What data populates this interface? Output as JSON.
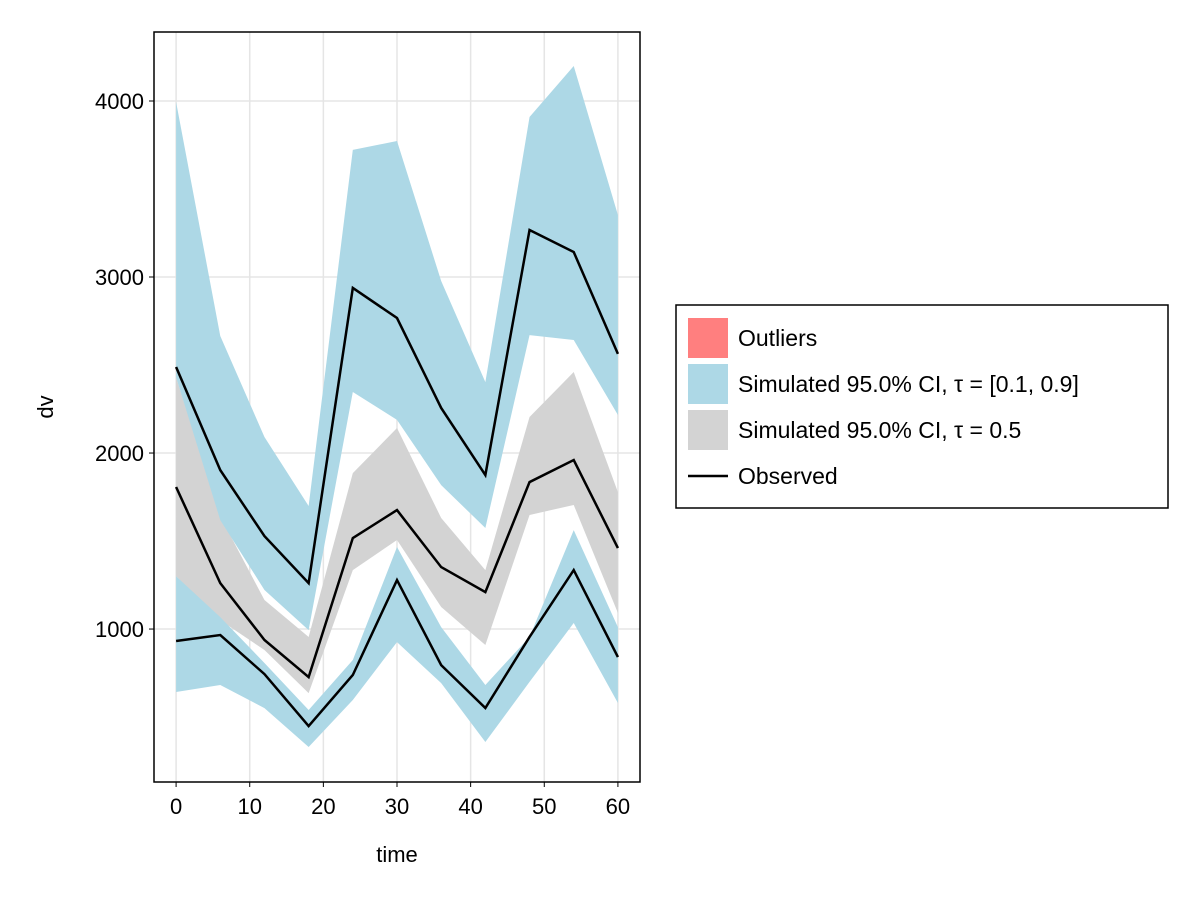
{
  "chart_data": {
    "type": "area",
    "title": "",
    "xlabel": "time",
    "ylabel": "dv",
    "xlim": [
      -3,
      63
    ],
    "ylim": [
      131,
      4392
    ],
    "xticks": [
      0,
      10,
      20,
      30,
      40,
      50,
      60
    ],
    "yticks": [
      1000,
      2000,
      3000,
      4000
    ],
    "grid": true,
    "legend_position": "right",
    "x": [
      0,
      6,
      12,
      18,
      24,
      30,
      36,
      42,
      48,
      54,
      60
    ],
    "bands": [
      {
        "name": "Simulated 95.0% CI, τ = 0.5",
        "color": "#d3d3d3",
        "upper": [
          2430,
          1640,
          1165,
          955,
          1886,
          2142,
          1631,
          1335,
          2205,
          2460,
          1778
        ],
        "lower": [
          1300,
          1050,
          881,
          636,
          1335,
          1506,
          1125,
          909,
          1648,
          1705,
          1091
        ]
      },
      {
        "name": "Simulated 95.0% CI, τ = [0.1, 0.9]",
        "color": "#add8e6",
        "upper": [
          3994,
          2665,
          2091,
          1699,
          3722,
          3773,
          2977,
          2403,
          3909,
          4199,
          3352
        ],
        "lower": [
          2430,
          1619,
          1222,
          994,
          2347,
          2188,
          1818,
          1574,
          2670,
          2642,
          2216
        ]
      },
      {
        "name": "Simulated 95.0% CI, τ = [0.1, 0.9]",
        "color": "#add8e6",
        "upper": [
          1300,
          1068,
          807,
          540,
          824,
          1466,
          1011,
          682,
          955,
          1562,
          1011
        ],
        "lower": [
          642,
          682,
          551,
          330,
          597,
          926,
          693,
          358,
          700,
          1034,
          580
        ]
      }
    ],
    "series": [
      {
        "name": "Observed",
        "quantile": 0.9,
        "values": [
          2489,
          1903,
          1528,
          1261,
          2938,
          2767,
          2256,
          1875,
          3267,
          3142,
          2563
        ]
      },
      {
        "name": "Observed",
        "quantile": 0.5,
        "values": [
          1807,
          1261,
          938,
          727,
          1517,
          1676,
          1352,
          1210,
          1835,
          1960,
          1460
        ]
      },
      {
        "name": "Observed",
        "quantile": 0.1,
        "values": [
          932,
          966,
          744,
          449,
          739,
          1278,
          795,
          551,
          955,
          1335,
          841
        ]
      }
    ],
    "legend": [
      {
        "label": "Outliers",
        "kind": "patch",
        "color": "#ff7f7f"
      },
      {
        "label": "Simulated 95.0% CI, τ = [0.1, 0.9]",
        "kind": "patch",
        "color": "#add8e6"
      },
      {
        "label": "Simulated 95.0% CI, τ = 0.5",
        "kind": "patch",
        "color": "#d3d3d3"
      },
      {
        "label": "Observed",
        "kind": "line",
        "color": "#000000"
      }
    ]
  }
}
